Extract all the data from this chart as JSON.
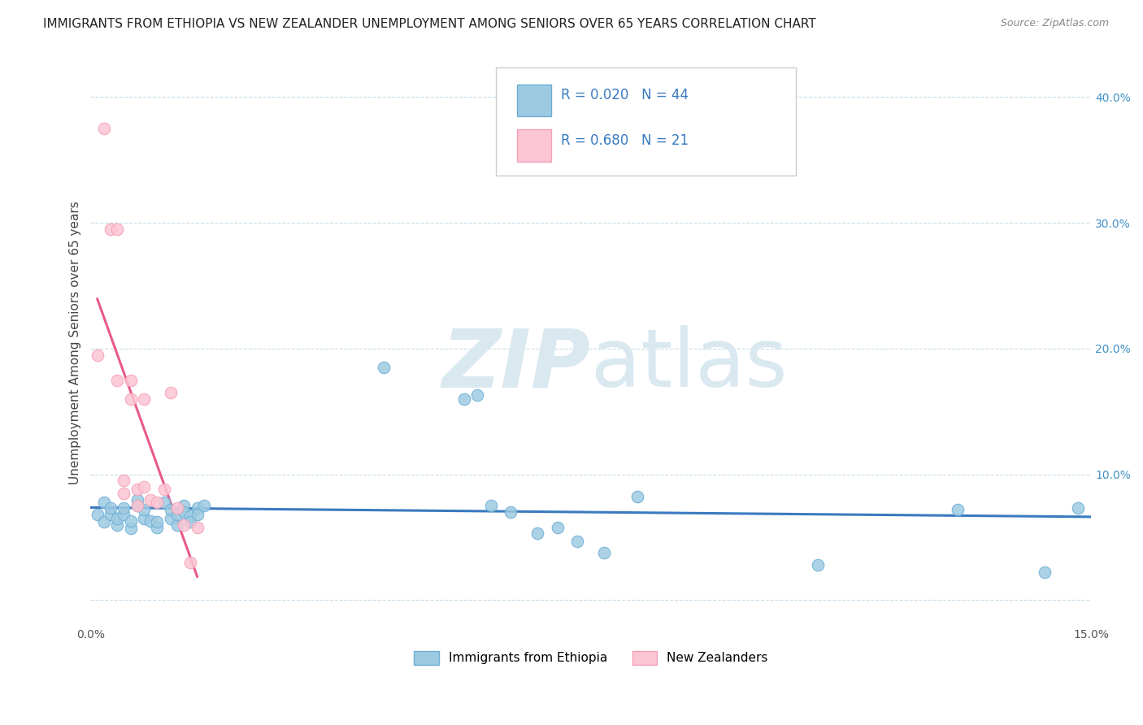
{
  "title": "IMMIGRANTS FROM ETHIOPIA VS NEW ZEALANDER UNEMPLOYMENT AMONG SENIORS OVER 65 YEARS CORRELATION CHART",
  "source": "Source: ZipAtlas.com",
  "ylabel": "Unemployment Among Seniors over 65 years",
  "xlim": [
    0.0,
    0.15
  ],
  "ylim": [
    -0.02,
    0.43
  ],
  "legend_label1": "Immigrants from Ethiopia",
  "legend_label2": "New Zealanders",
  "R1": "0.020",
  "N1": "44",
  "R2": "0.680",
  "N2": "21",
  "color_blue": "#6baed6",
  "color_blue_light": "#9ecae1",
  "color_pink": "#f4a0b5",
  "color_pink_light": "#fcc5d4",
  "color_line_blue": "#3a7abf",
  "color_line_pink": "#e85a8a",
  "watermark_color": "#dae8f0",
  "scatter_blue_x": [
    0.001,
    0.002,
    0.002,
    0.003,
    0.003,
    0.004,
    0.004,
    0.005,
    0.005,
    0.006,
    0.006,
    0.007,
    0.007,
    0.008,
    0.008,
    0.009,
    0.01,
    0.01,
    0.011,
    0.012,
    0.012,
    0.013,
    0.013,
    0.014,
    0.014,
    0.015,
    0.015,
    0.016,
    0.016,
    0.017,
    0.044,
    0.056,
    0.058,
    0.06,
    0.063,
    0.067,
    0.07,
    0.073,
    0.077,
    0.082,
    0.109,
    0.13,
    0.143,
    0.148
  ],
  "scatter_blue_y": [
    0.068,
    0.062,
    0.078,
    0.068,
    0.073,
    0.06,
    0.065,
    0.068,
    0.073,
    0.057,
    0.063,
    0.075,
    0.08,
    0.065,
    0.072,
    0.063,
    0.058,
    0.062,
    0.078,
    0.065,
    0.072,
    0.06,
    0.068,
    0.075,
    0.07,
    0.067,
    0.062,
    0.073,
    0.068,
    0.075,
    0.185,
    0.16,
    0.163,
    0.075,
    0.07,
    0.053,
    0.058,
    0.047,
    0.038,
    0.082,
    0.028,
    0.072,
    0.022,
    0.073
  ],
  "scatter_pink_x": [
    0.001,
    0.002,
    0.003,
    0.004,
    0.004,
    0.005,
    0.005,
    0.006,
    0.006,
    0.007,
    0.007,
    0.008,
    0.008,
    0.009,
    0.01,
    0.011,
    0.012,
    0.013,
    0.014,
    0.015,
    0.016
  ],
  "scatter_pink_y": [
    0.195,
    0.375,
    0.295,
    0.295,
    0.175,
    0.085,
    0.095,
    0.16,
    0.175,
    0.088,
    0.075,
    0.16,
    0.09,
    0.08,
    0.078,
    0.088,
    0.165,
    0.073,
    0.06,
    0.03,
    0.058
  ],
  "background_color": "#ffffff",
  "grid_color": "#c8dcea",
  "title_fontsize": 11,
  "source_fontsize": 9
}
